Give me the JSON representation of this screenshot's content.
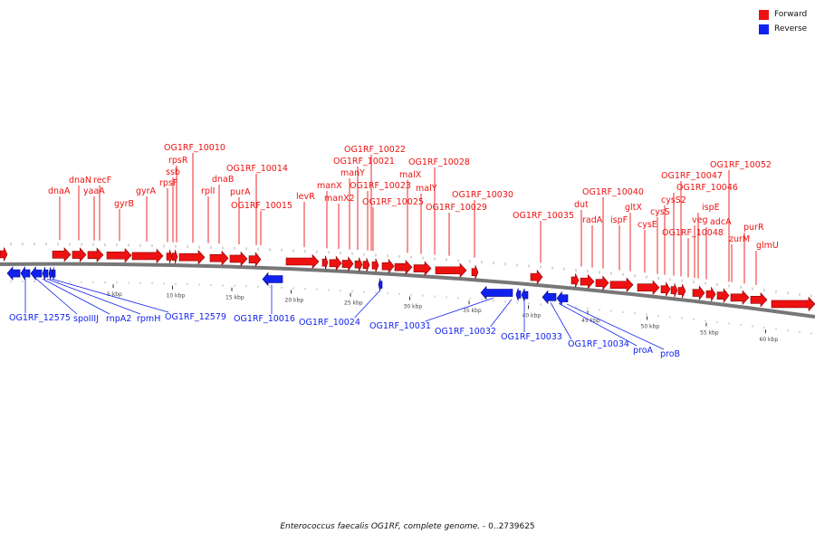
{
  "legend": {
    "forward_label": "Forward",
    "reverse_label": "Reverse",
    "forward_color": "#ee1111",
    "reverse_color": "#1122ee"
  },
  "caption": {
    "organism": "Enterococcus faecalis OG1RF, complete genome.",
    "range": "- 0..2739625"
  },
  "track": {
    "scale_ticks": [
      "5 kbp",
      "10 kbp",
      "15 kbp",
      "20 kbp",
      "25 kbp",
      "30 kbp",
      "35 kbp",
      "40 kbp",
      "45 kbp",
      "50 kbp",
      "55 kbp",
      "60 kbp"
    ]
  },
  "forward_genes": [
    "dnaA",
    "dnaN",
    "yaaA",
    "recF",
    "gyrB",
    "gyrA",
    "rpsF",
    "ssb",
    "rpsR",
    "OG1RF_10010",
    "rplI",
    "dnaB",
    "purA",
    "OG1RF_10014",
    "OG1RF_10015",
    "levR",
    "manX",
    "manX2",
    "manY",
    "OG1RF_10021",
    "OG1RF_10022",
    "OG1RF_10023",
    "OG1RF_10025",
    "malX",
    "malY",
    "OG1RF_10028",
    "OG1RF_10029",
    "OG1RF_10030",
    "OG1RF_10035",
    "dut",
    "radA",
    "OG1RF_10040",
    "ispF",
    "gltX",
    "cysE",
    "cysS",
    "cysS2",
    "OG1RF_10046",
    "OG1RF_10047",
    "OG1RF_10048",
    "veg",
    "ispE",
    "adcA",
    "OG1RF_10052",
    "zurM",
    "purR",
    "glmU"
  ],
  "reverse_genes": [
    "OG1RF_12575",
    "spoIIIJ",
    "rnpA2",
    "rpmH",
    "OG1RF_12579",
    "OG1RF_10016",
    "OG1RF_10024",
    "OG1RF_10031",
    "OG1RF_10032",
    "OG1RF_10033",
    "OG1RF_10034",
    "proA",
    "proB"
  ]
}
